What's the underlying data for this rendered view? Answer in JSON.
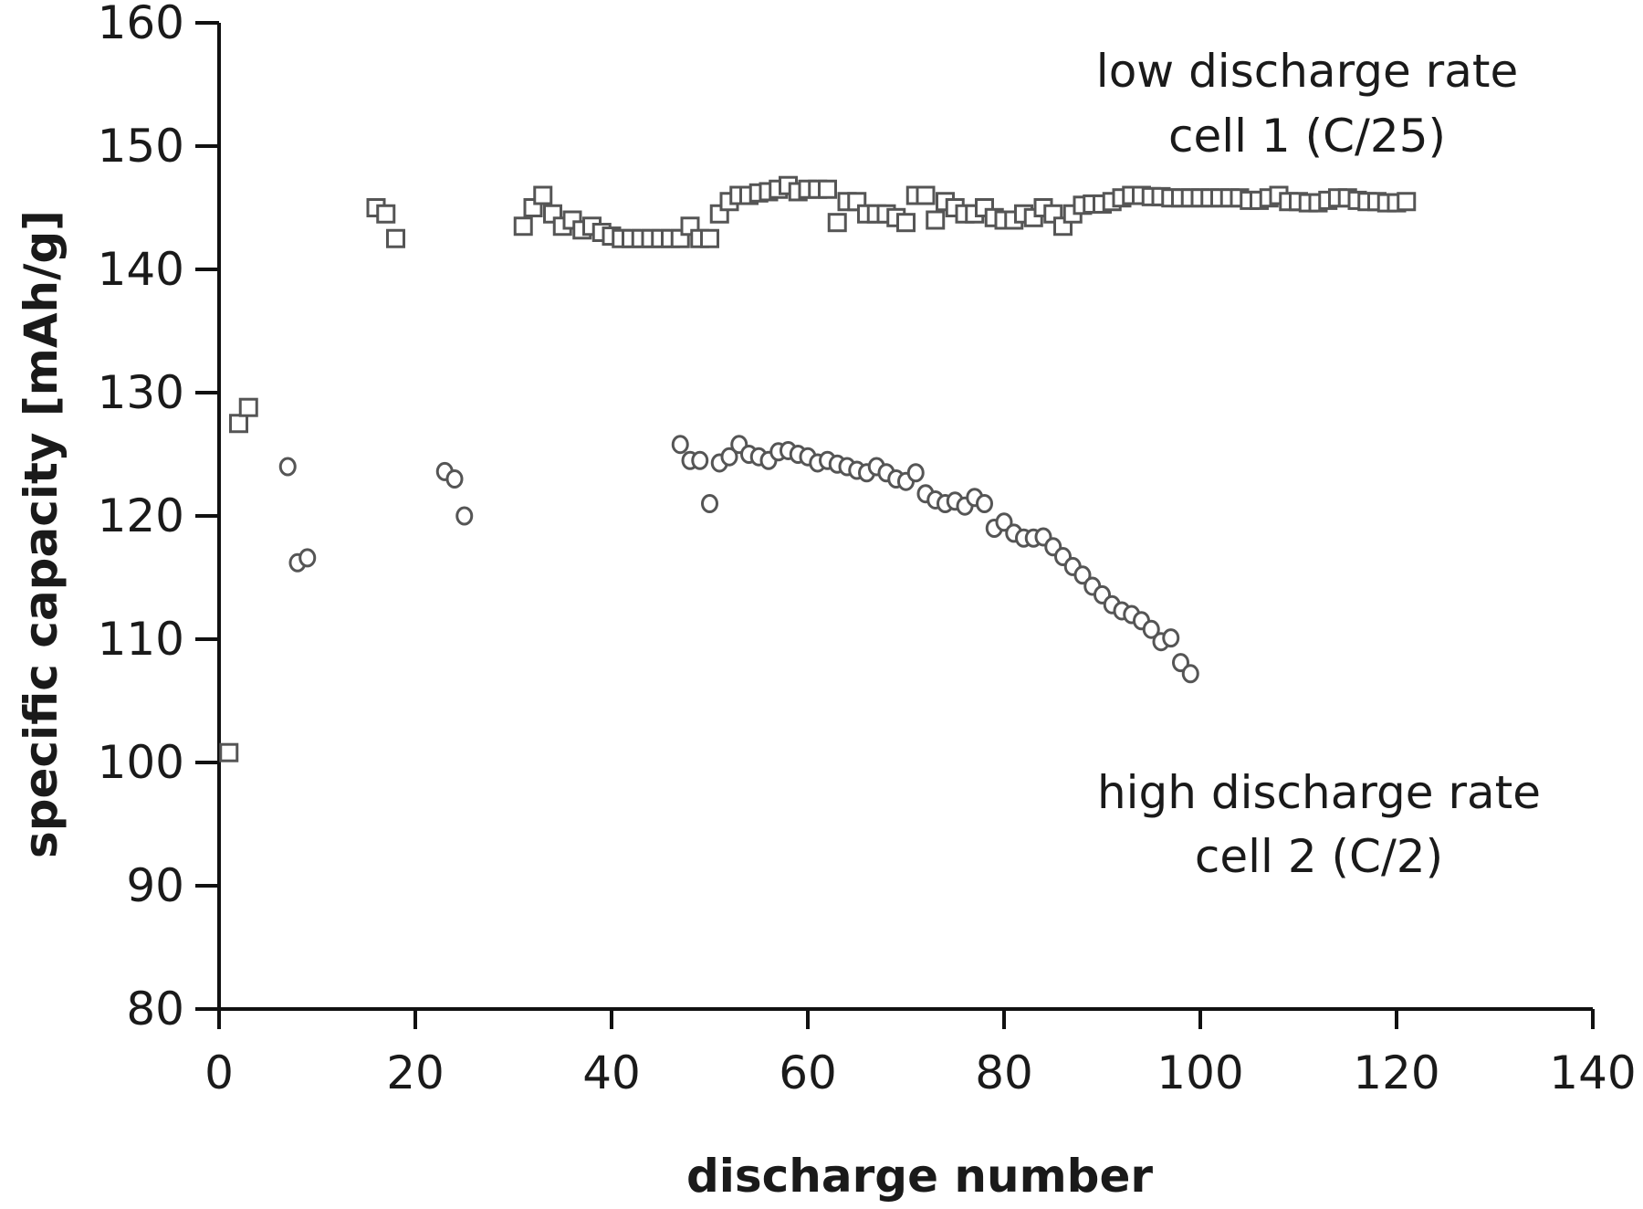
{
  "chart_data": {
    "type": "scatter",
    "title": "",
    "xlabel": "discharge number",
    "ylabel": "specific capacity [mAh/g]",
    "xlim": [
      0,
      140
    ],
    "ylim": [
      80,
      160
    ],
    "xticks": [
      "0",
      "20",
      "40",
      "60",
      "80",
      "100",
      "120",
      "140"
    ],
    "yticks": [
      "80",
      "90",
      "100",
      "110",
      "120",
      "130",
      "140",
      "150",
      "160"
    ],
    "grid": false,
    "legend": "none",
    "annotations": [
      {
        "lines": [
          "low discharge rate",
          "cell 1 (C/25)"
        ]
      },
      {
        "lines": [
          "high discharge rate",
          "cell 2 (C/2)"
        ]
      }
    ],
    "series": [
      {
        "marker": "square",
        "color": "#555555",
        "points": [
          [
            1,
            100.8
          ],
          [
            2,
            127.5
          ],
          [
            3,
            128.8
          ],
          [
            16,
            145
          ],
          [
            17,
            144.5
          ],
          [
            18,
            142.5
          ],
          [
            31,
            143.5
          ],
          [
            32,
            145
          ],
          [
            33,
            146
          ],
          [
            34,
            144.5
          ],
          [
            35,
            143.5
          ],
          [
            36,
            144
          ],
          [
            37,
            143.2
          ],
          [
            38,
            143.5
          ],
          [
            39,
            143
          ],
          [
            40,
            142.7
          ],
          [
            41,
            142.5
          ],
          [
            42,
            142.5
          ],
          [
            43,
            142.5
          ],
          [
            44,
            142.5
          ],
          [
            45,
            142.5
          ],
          [
            46,
            142.5
          ],
          [
            47,
            142.5
          ],
          [
            48,
            143.5
          ],
          [
            49,
            142.5
          ],
          [
            50,
            142.5
          ],
          [
            51,
            144.5
          ],
          [
            52,
            145.5
          ],
          [
            53,
            146
          ],
          [
            54,
            146
          ],
          [
            55,
            146.2
          ],
          [
            56,
            146.3
          ],
          [
            57,
            146.5
          ],
          [
            58,
            146.8
          ],
          [
            59,
            146.3
          ],
          [
            60,
            146.5
          ],
          [
            61,
            146.5
          ],
          [
            62,
            146.5
          ],
          [
            63,
            143.8
          ],
          [
            64,
            145.5
          ],
          [
            65,
            145.5
          ],
          [
            66,
            144.5
          ],
          [
            67,
            144.5
          ],
          [
            68,
            144.5
          ],
          [
            69,
            144.2
          ],
          [
            70,
            143.8
          ],
          [
            71,
            146
          ],
          [
            72,
            146
          ],
          [
            73,
            144
          ],
          [
            74,
            145.5
          ],
          [
            75,
            145
          ],
          [
            76,
            144.5
          ],
          [
            77,
            144.5
          ],
          [
            78,
            145
          ],
          [
            79,
            144.2
          ],
          [
            80,
            144
          ],
          [
            81,
            144
          ],
          [
            82,
            144.5
          ],
          [
            83,
            144.2
          ],
          [
            84,
            145
          ],
          [
            85,
            144.5
          ],
          [
            86,
            143.5
          ],
          [
            87,
            144.5
          ],
          [
            88,
            145.2
          ],
          [
            89,
            145.3
          ],
          [
            90,
            145.3
          ],
          [
            91,
            145.5
          ],
          [
            92,
            145.8
          ],
          [
            93,
            146
          ],
          [
            94,
            146
          ],
          [
            95,
            145.9
          ],
          [
            96,
            145.9
          ],
          [
            97,
            145.8
          ],
          [
            98,
            145.8
          ],
          [
            99,
            145.8
          ],
          [
            100,
            145.8
          ],
          [
            101,
            145.8
          ],
          [
            102,
            145.8
          ],
          [
            103,
            145.8
          ],
          [
            104,
            145.8
          ],
          [
            105,
            145.6
          ],
          [
            106,
            145.6
          ],
          [
            107,
            145.8
          ],
          [
            108,
            146
          ],
          [
            109,
            145.5
          ],
          [
            110,
            145.5
          ],
          [
            111,
            145.4
          ],
          [
            112,
            145.4
          ],
          [
            113,
            145.6
          ],
          [
            114,
            145.8
          ],
          [
            115,
            145.8
          ],
          [
            116,
            145.6
          ],
          [
            117,
            145.5
          ],
          [
            118,
            145.5
          ],
          [
            119,
            145.4
          ],
          [
            120,
            145.4
          ],
          [
            121,
            145.5
          ]
        ]
      },
      {
        "marker": "circle",
        "color": "#555555",
        "points": [
          [
            7,
            124
          ],
          [
            8,
            116.2
          ],
          [
            9,
            116.6
          ],
          [
            23,
            123.6
          ],
          [
            24,
            123
          ],
          [
            25,
            120
          ],
          [
            47,
            125.8
          ],
          [
            48,
            124.5
          ],
          [
            49,
            124.5
          ],
          [
            50,
            121
          ],
          [
            51,
            124.3
          ],
          [
            52,
            124.8
          ],
          [
            53,
            125.8
          ],
          [
            54,
            125
          ],
          [
            55,
            124.8
          ],
          [
            56,
            124.5
          ],
          [
            57,
            125.2
          ],
          [
            58,
            125.3
          ],
          [
            59,
            125
          ],
          [
            60,
            124.8
          ],
          [
            61,
            124.3
          ],
          [
            62,
            124.5
          ],
          [
            63,
            124.2
          ],
          [
            64,
            124
          ],
          [
            65,
            123.7
          ],
          [
            66,
            123.5
          ],
          [
            67,
            124
          ],
          [
            68,
            123.5
          ],
          [
            69,
            123
          ],
          [
            70,
            122.8
          ],
          [
            71,
            123.5
          ],
          [
            72,
            121.8
          ],
          [
            73,
            121.3
          ],
          [
            74,
            121
          ],
          [
            75,
            121.2
          ],
          [
            76,
            120.8
          ],
          [
            77,
            121.5
          ],
          [
            78,
            121
          ],
          [
            79,
            119
          ],
          [
            80,
            119.5
          ],
          [
            81,
            118.6
          ],
          [
            82,
            118.2
          ],
          [
            83,
            118.2
          ],
          [
            84,
            118.3
          ],
          [
            85,
            117.5
          ],
          [
            86,
            116.7
          ],
          [
            87,
            115.9
          ],
          [
            88,
            115.2
          ],
          [
            89,
            114.3
          ],
          [
            90,
            113.6
          ],
          [
            91,
            112.8
          ],
          [
            92,
            112.3
          ],
          [
            93,
            112
          ],
          [
            94,
            111.5
          ],
          [
            95,
            110.8
          ],
          [
            96,
            109.8
          ],
          [
            97,
            110.1
          ],
          [
            98,
            108.1
          ],
          [
            99,
            107.2
          ]
        ]
      }
    ]
  }
}
